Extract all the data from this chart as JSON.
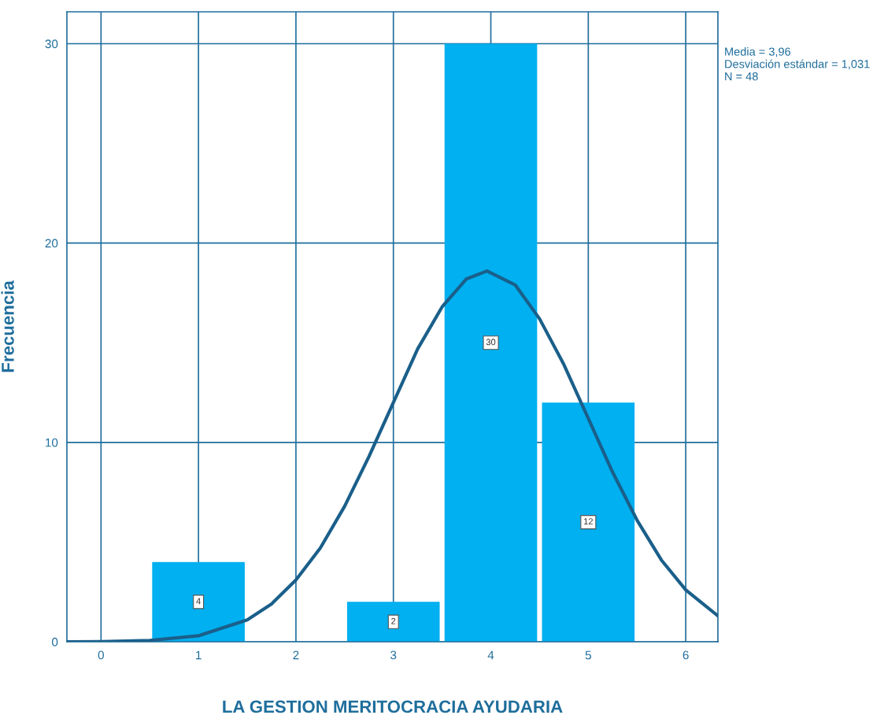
{
  "chart_data": {
    "type": "histogram",
    "xlabel": "LA GESTION MERITOCRACIA AYUDARIA",
    "ylabel": "Frecuencia",
    "bins": [
      0.5,
      1.5,
      2.5,
      3.5,
      4.5,
      5.5
    ],
    "values": [
      4,
      0,
      2,
      30,
      12
    ],
    "color": "#00b0f0",
    "value_labels": [
      "4",
      null,
      "2",
      "30",
      "12"
    ],
    "series": [
      {
        "type": "line",
        "color": "#1a5f8a",
        "x": [
          -0.35,
          0,
          0.5,
          1,
          1.5,
          1.75,
          2,
          2.25,
          2.5,
          2.75,
          3,
          3.25,
          3.5,
          3.75,
          3.96,
          4.25,
          4.5,
          4.75,
          5,
          5.25,
          5.5,
          5.75,
          6,
          6.33
        ],
        "values": [
          0,
          0.01,
          0.07,
          0.3,
          1.1,
          1.9,
          3.1,
          4.7,
          6.8,
          9.3,
          12,
          14.7,
          16.8,
          18.2,
          18.6,
          17.9,
          16.2,
          13.9,
          11.2,
          8.5,
          6.1,
          4.1,
          2.6,
          1.3
        ]
      }
    ],
    "xlim": [
      -0.35,
      6.33
    ],
    "ylim": [
      0,
      31.6
    ],
    "xticks": [
      0,
      1,
      2,
      3,
      4,
      5,
      6
    ],
    "yticks": [
      0,
      10,
      20,
      30
    ],
    "grid": true,
    "annotations": [
      "Media = 3,96\nDesviación estándar = 1,031\nN = 48"
    ]
  }
}
